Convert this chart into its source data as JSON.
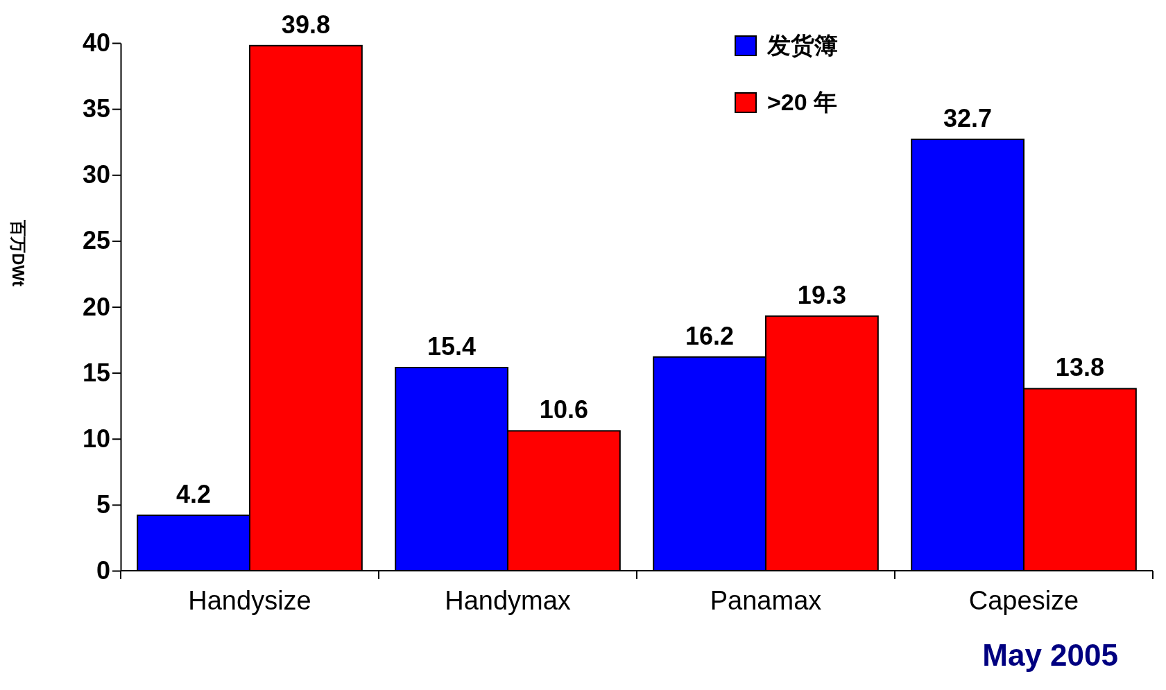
{
  "chart_data": {
    "type": "bar",
    "ylabel": "百万DWt",
    "categories": [
      "Handysize",
      "Handymax",
      "Panamax",
      "Capesize"
    ],
    "series": [
      {
        "name": "发货簿",
        "color": "#0000ff",
        "values": [
          4.2,
          15.4,
          16.2,
          32.7
        ]
      },
      {
        "name": ">20 年",
        "color": "#ff0000",
        "values": [
          39.8,
          10.6,
          19.3,
          13.8
        ]
      }
    ],
    "ylim": [
      0,
      40
    ],
    "yticks": [
      0,
      5,
      10,
      15,
      20,
      25,
      30,
      35,
      40
    ],
    "data_labels": true,
    "legend": "top",
    "grid": false,
    "annotations": [
      "May 2005"
    ]
  }
}
